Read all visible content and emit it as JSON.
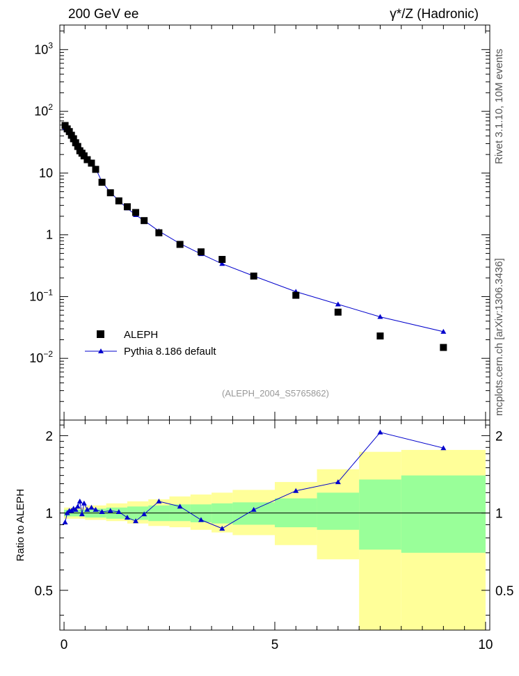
{
  "header": {
    "left_title": "200 GeV ee",
    "right_title": "γ*/Z (Hadronic)"
  },
  "side_labels": {
    "rivet": "Rivet 3.1.10,  10M events",
    "mcplots": "mcplots.cern.ch [arXiv:1306.3436]"
  },
  "analysis_id": "(ALEPH_2004_S5765862)",
  "legend": {
    "data_label": "ALEPH",
    "mc_label": "Pythia 8.186 default"
  },
  "colors": {
    "mc_line": "#0000cc",
    "data_marker": "#000000",
    "band_inner": "#99ff99",
    "band_outer": "#ffff99"
  },
  "chart_data": [
    {
      "type": "scatter",
      "panel": "main",
      "yscale": "log",
      "xlim": [
        -0.1,
        10.1
      ],
      "ylim": [
        0.001,
        2500
      ],
      "ytick_labels": [
        "10^-2",
        "10^-1",
        "1",
        "10",
        "10^2",
        "10^3"
      ],
      "series": [
        {
          "name": "ALEPH",
          "x": [
            0.025,
            0.075,
            0.125,
            0.175,
            0.225,
            0.275,
            0.325,
            0.375,
            0.425,
            0.475,
            0.55,
            0.65,
            0.75,
            0.9,
            1.1,
            1.3,
            1.5,
            1.7,
            1.9,
            2.25,
            2.75,
            3.25,
            3.75,
            4.5,
            5.5,
            6.5,
            7.5,
            9.0
          ],
          "values": [
            59,
            52,
            47,
            41,
            36,
            31,
            27,
            23,
            21,
            19,
            16.5,
            14.5,
            11.5,
            7.1,
            4.8,
            3.55,
            2.85,
            2.3,
            1.7,
            1.08,
            0.7,
            0.53,
            0.4,
            0.215,
            0.105,
            0.056,
            0.023,
            0.015
          ]
        },
        {
          "name": "Pythia 8.186 default",
          "x": [
            0.025,
            0.075,
            0.125,
            0.175,
            0.225,
            0.275,
            0.325,
            0.375,
            0.425,
            0.475,
            0.55,
            0.65,
            0.75,
            0.9,
            1.1,
            1.3,
            1.5,
            1.7,
            1.9,
            2.25,
            2.75,
            3.25,
            3.75,
            4.5,
            5.5,
            6.5,
            7.5,
            9.0
          ],
          "values": [
            54,
            52,
            47,
            43,
            37,
            32,
            29,
            26,
            23,
            20,
            17,
            15,
            11.9,
            7.2,
            4.9,
            3.55,
            2.7,
            2.1,
            1.7,
            1.15,
            0.72,
            0.49,
            0.34,
            0.215,
            0.12,
            0.075,
            0.047,
            0.027
          ]
        }
      ]
    },
    {
      "type": "line",
      "panel": "ratio",
      "ylabel": "Ratio to ALEPH",
      "xlim": [
        -0.1,
        10.1
      ],
      "ylim": [
        0.35,
        2.3
      ],
      "ytick_labels": [
        "0.5",
        "1",
        "2"
      ],
      "xtick_labels": [
        "0",
        "5",
        "10"
      ],
      "reference_line": 1.0,
      "series": [
        {
          "name": "Pythia 8.186 default",
          "x": [
            0.025,
            0.075,
            0.125,
            0.175,
            0.225,
            0.275,
            0.325,
            0.375,
            0.425,
            0.475,
            0.55,
            0.65,
            0.75,
            0.9,
            1.1,
            1.3,
            1.5,
            1.7,
            1.9,
            2.25,
            2.75,
            3.25,
            3.75,
            4.5,
            5.5,
            6.5,
            7.5,
            9.0
          ],
          "values": [
            0.92,
            1.0,
            1.02,
            1.02,
            1.04,
            1.03,
            1.06,
            1.11,
            0.99,
            1.09,
            1.03,
            1.05,
            1.03,
            1.01,
            1.02,
            1.01,
            0.96,
            0.93,
            0.99,
            1.11,
            1.06,
            0.94,
            0.87,
            1.03,
            1.22,
            1.32,
            2.06,
            1.79
          ]
        }
      ],
      "bands": {
        "x_edges": [
          0,
          0.5,
          1.0,
          1.5,
          2.0,
          2.5,
          3.0,
          3.5,
          4.0,
          5.0,
          6.0,
          7.0,
          8.0,
          10.0
        ],
        "inner_low": [
          0.97,
          0.96,
          0.95,
          0.94,
          0.93,
          0.93,
          0.92,
          0.91,
          0.9,
          0.88,
          0.86,
          0.72,
          0.7
        ],
        "inner_high": [
          1.03,
          1.04,
          1.05,
          1.06,
          1.07,
          1.08,
          1.08,
          1.09,
          1.1,
          1.14,
          1.2,
          1.35,
          1.4
        ],
        "outer_low": [
          0.95,
          0.94,
          0.93,
          0.91,
          0.89,
          0.88,
          0.86,
          0.84,
          0.82,
          0.75,
          0.66,
          0.3,
          0.3
        ],
        "outer_high": [
          1.05,
          1.07,
          1.09,
          1.11,
          1.13,
          1.16,
          1.18,
          1.2,
          1.23,
          1.32,
          1.48,
          1.73,
          1.76
        ]
      }
    }
  ]
}
